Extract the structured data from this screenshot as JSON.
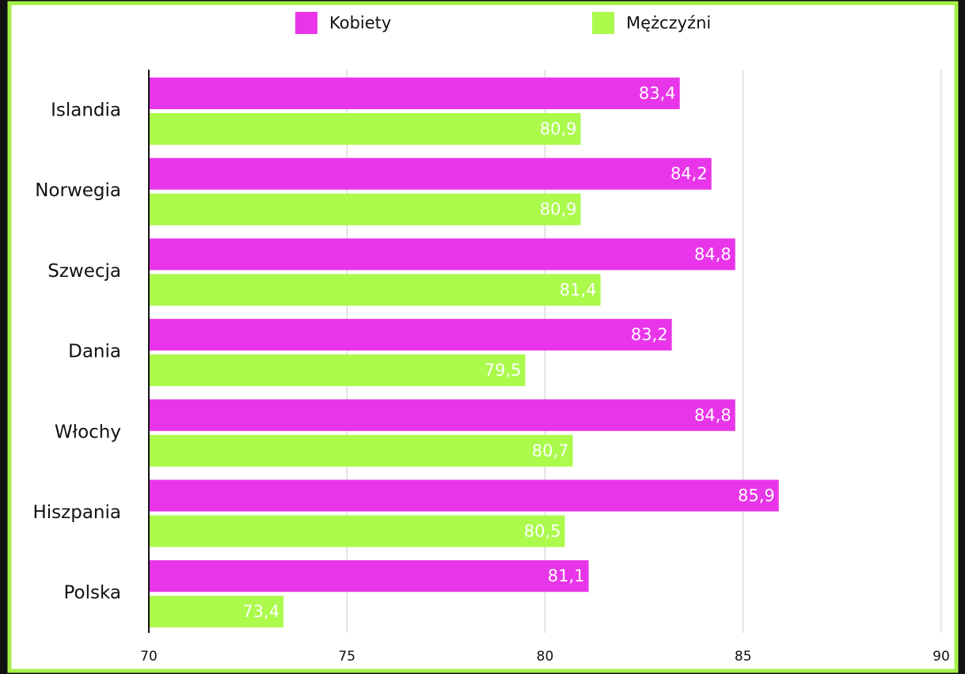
{
  "chart_data": {
    "type": "barh",
    "categories": [
      "Islandia",
      "Norwegia",
      "Szwecja",
      "Dania",
      "Włochy",
      "Hiszpania",
      "Polska"
    ],
    "series": [
      {
        "name": "Kobiety",
        "color": "#e935e9",
        "values": [
          83.4,
          84.2,
          84.8,
          83.2,
          84.8,
          85.9,
          81.1
        ],
        "value_labels": [
          "83,4",
          "84,2",
          "84,8",
          "83,2",
          "84,8",
          "85,9",
          "81,1"
        ]
      },
      {
        "name": "Mężczyźni",
        "color": "#abfa4c",
        "values": [
          80.9,
          80.9,
          81.4,
          79.5,
          80.7,
          80.5,
          73.4
        ],
        "value_labels": [
          "80,9",
          "80,9",
          "81,4",
          "79,5",
          "80,7",
          "80,5",
          "73,4"
        ]
      }
    ],
    "xlim": [
      70,
      90
    ],
    "xticks": [
      70,
      75,
      80,
      85,
      90
    ],
    "grid": true,
    "legend": "top"
  }
}
